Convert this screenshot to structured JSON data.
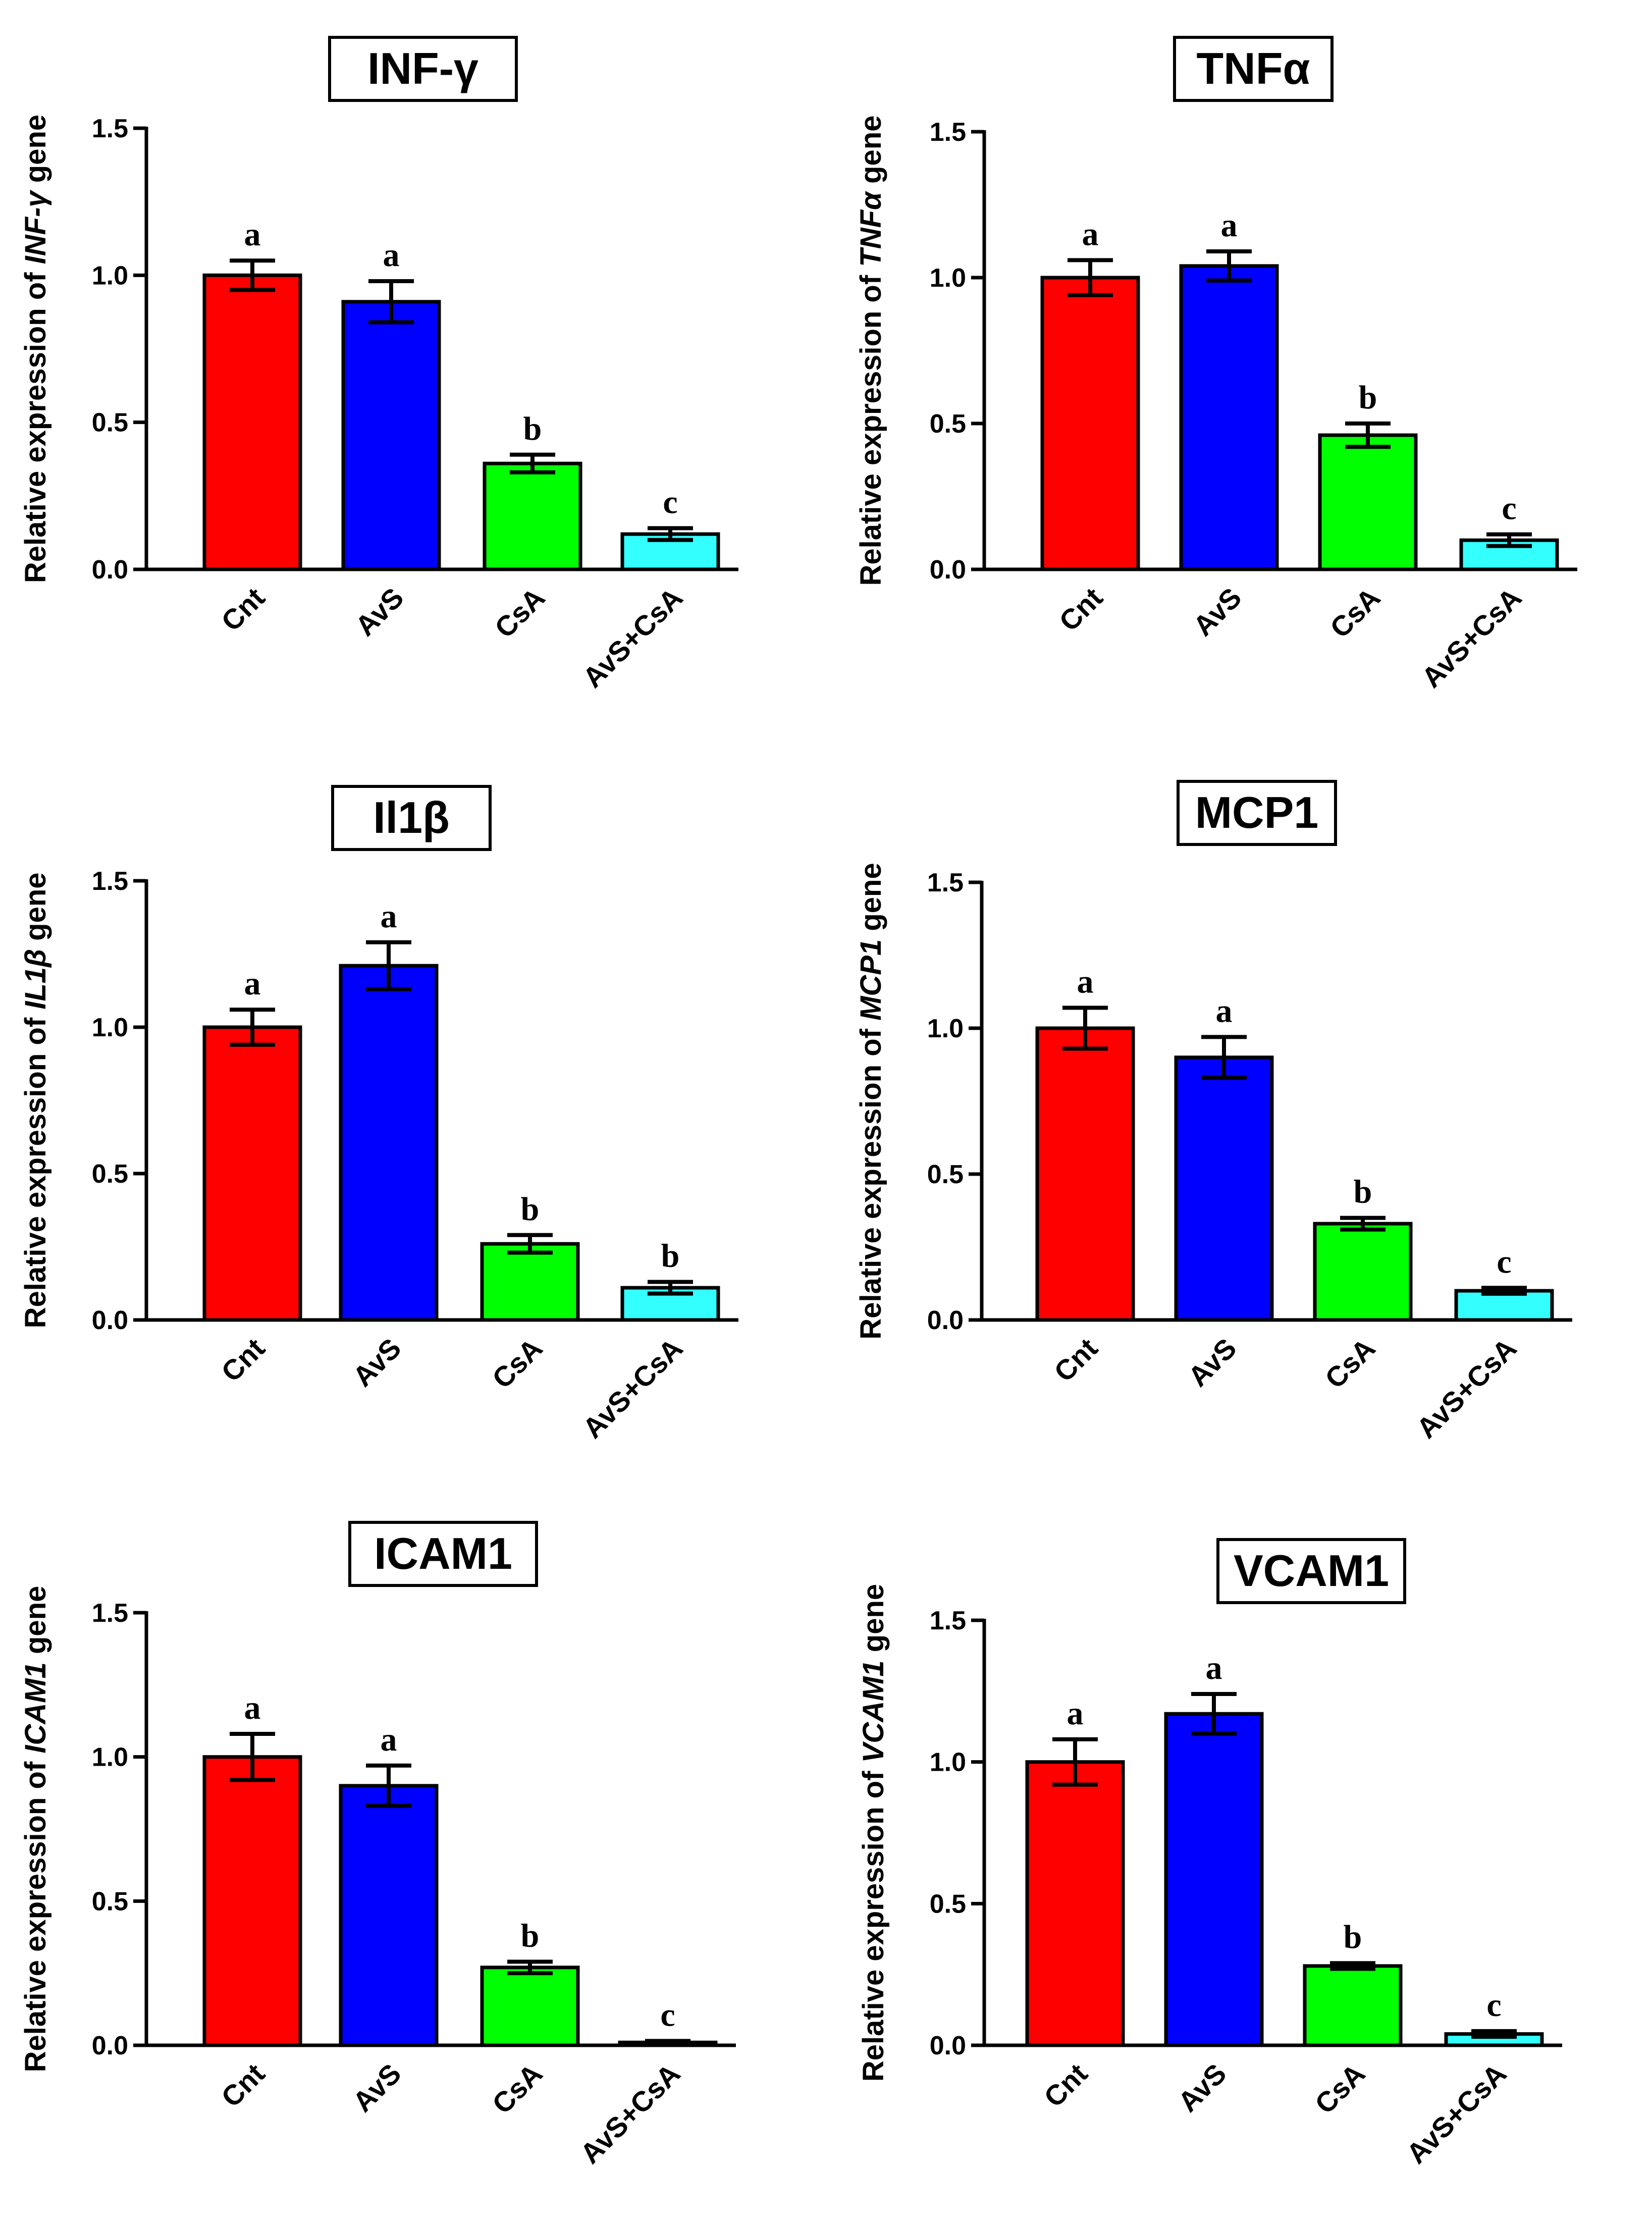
{
  "figure": {
    "ylabel_prefix": "Relative expression of ",
    "ylabel_suffix": " gene"
  },
  "chart_data": [
    {
      "type": "bar",
      "title": "INF-γ",
      "gene_italic": "INF-γ",
      "categories": [
        "Cnt",
        "AvS",
        "CsA",
        "AvS+CsA"
      ],
      "values": [
        1.0,
        0.91,
        0.36,
        0.12
      ],
      "errors": [
        0.05,
        0.07,
        0.03,
        0.02
      ],
      "letters": [
        "a",
        "a",
        "b",
        "c"
      ],
      "colors": [
        "#ff0000",
        "#0000ff",
        "#00ff00",
        "#33ffff"
      ],
      "ylim": [
        0,
        1.5
      ],
      "yticks": [
        "0.0",
        "0.5",
        "1.0",
        "1.5"
      ],
      "ytick_values": [
        0,
        0.5,
        1.0,
        1.5
      ],
      "xlabel": "",
      "ylabel": "Relative expression of INF-γ gene"
    },
    {
      "type": "bar",
      "title": "TNFα",
      "gene_italic": "TNFα",
      "categories": [
        "Cnt",
        "AvS",
        "CsA",
        "AvS+CsA"
      ],
      "values": [
        1.0,
        1.04,
        0.46,
        0.1
      ],
      "errors": [
        0.06,
        0.05,
        0.04,
        0.02
      ],
      "letters": [
        "a",
        "a",
        "b",
        "c"
      ],
      "colors": [
        "#ff0000",
        "#0000ff",
        "#00ff00",
        "#33ffff"
      ],
      "ylim": [
        0,
        1.5
      ],
      "yticks": [
        "0.0",
        "0.5",
        "1.0",
        "1.5"
      ],
      "ytick_values": [
        0,
        0.5,
        1.0,
        1.5
      ],
      "xlabel": "",
      "ylabel": "Relative expression of TNFα gene"
    },
    {
      "type": "bar",
      "title": "Il1β",
      "gene_italic": "IL1β",
      "categories": [
        "Cnt",
        "AvS",
        "CsA",
        "AvS+CsA"
      ],
      "values": [
        1.0,
        1.21,
        0.26,
        0.11
      ],
      "errors": [
        0.06,
        0.08,
        0.03,
        0.02
      ],
      "letters": [
        "a",
        "a",
        "b",
        "b"
      ],
      "colors": [
        "#ff0000",
        "#0000ff",
        "#00ff00",
        "#33ffff"
      ],
      "ylim": [
        0,
        1.5
      ],
      "yticks": [
        "0.0",
        "0.5",
        "1.0",
        "1.5"
      ],
      "ytick_values": [
        0,
        0.5,
        1.0,
        1.5
      ],
      "xlabel": "",
      "ylabel": "Relative expression of IL1β gene"
    },
    {
      "type": "bar",
      "title": "MCP1",
      "gene_italic": "MCP1",
      "categories": [
        "Cnt",
        "AvS",
        "CsA",
        "AvS+CsA"
      ],
      "values": [
        1.0,
        0.9,
        0.33,
        0.1
      ],
      "errors": [
        0.07,
        0.07,
        0.02,
        0.01
      ],
      "letters": [
        "a",
        "a",
        "b",
        "c"
      ],
      "colors": [
        "#ff0000",
        "#0000ff",
        "#00ff00",
        "#33ffff"
      ],
      "ylim": [
        0,
        1.5
      ],
      "yticks": [
        "0.0",
        "0.5",
        "1.0",
        "1.5"
      ],
      "ytick_values": [
        0,
        0.5,
        1.0,
        1.5
      ],
      "xlabel": "",
      "ylabel": "Relative expression of MCP1 gene"
    },
    {
      "type": "bar",
      "title": "ICAM1",
      "gene_italic": "ICAM1",
      "categories": [
        "Cnt",
        "AvS",
        "CsA",
        "AvS+CsA"
      ],
      "values": [
        1.0,
        0.9,
        0.27,
        0.01
      ],
      "errors": [
        0.08,
        0.07,
        0.02,
        0.005
      ],
      "letters": [
        "a",
        "a",
        "b",
        "c"
      ],
      "colors": [
        "#ff0000",
        "#0000ff",
        "#00ff00",
        "#33ffff"
      ],
      "ylim": [
        0,
        1.5
      ],
      "yticks": [
        "0.0",
        "0.5",
        "1.0",
        "1.5"
      ],
      "ytick_values": [
        0,
        0.5,
        1.0,
        1.5
      ],
      "xlabel": "",
      "ylabel": "Relative expression of ICAM1 gene"
    },
    {
      "type": "bar",
      "title": "VCAM1",
      "gene_italic": "VCAM1",
      "categories": [
        "Cnt",
        "AvS",
        "CsA",
        "AvS+CsA"
      ],
      "values": [
        1.0,
        1.17,
        0.28,
        0.04
      ],
      "errors": [
        0.08,
        0.07,
        0.01,
        0.01
      ],
      "letters": [
        "a",
        "a",
        "b",
        "c"
      ],
      "colors": [
        "#ff0000",
        "#0000ff",
        "#00ff00",
        "#33ffff"
      ],
      "ylim": [
        0,
        1.5
      ],
      "yticks": [
        "0.0",
        "0.5",
        "1.0",
        "1.5"
      ],
      "ytick_values": [
        0,
        0.5,
        1.0,
        1.5
      ],
      "xlabel": "",
      "ylabel": "Relative expression of VCAM1 gene"
    }
  ]
}
